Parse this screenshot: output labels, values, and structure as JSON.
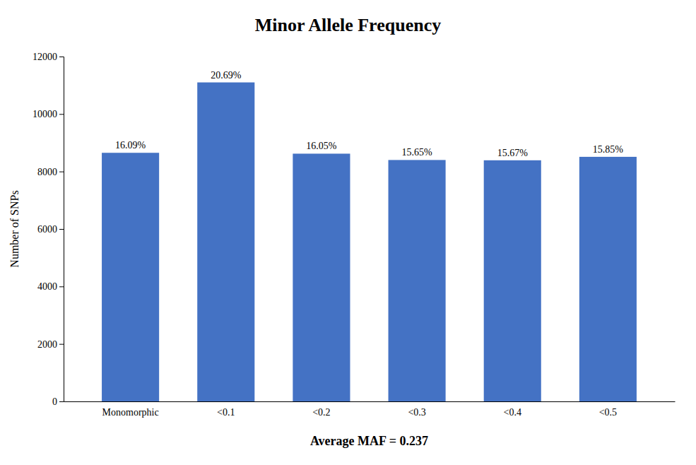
{
  "chart_data": {
    "type": "bar",
    "title": "Minor Allele Frequency",
    "xlabel": "Average MAF = 0.237",
    "ylabel": "Number of SNPs",
    "categories": [
      "Monomorphic",
      "<0.1",
      "<0.2",
      "<0.3",
      "<0.4",
      "<0.5"
    ],
    "values": [
      8650,
      11100,
      8620,
      8400,
      8390,
      8510
    ],
    "percentages": [
      "16.09%",
      "20.69%",
      "16.05%",
      "15.65%",
      "15.67%",
      "15.85%"
    ],
    "color": "#4472C4",
    "ylim": [
      0,
      12000
    ],
    "yticks": [
      0,
      2000,
      4000,
      6000,
      8000,
      10000,
      12000
    ],
    "grid": false
  }
}
